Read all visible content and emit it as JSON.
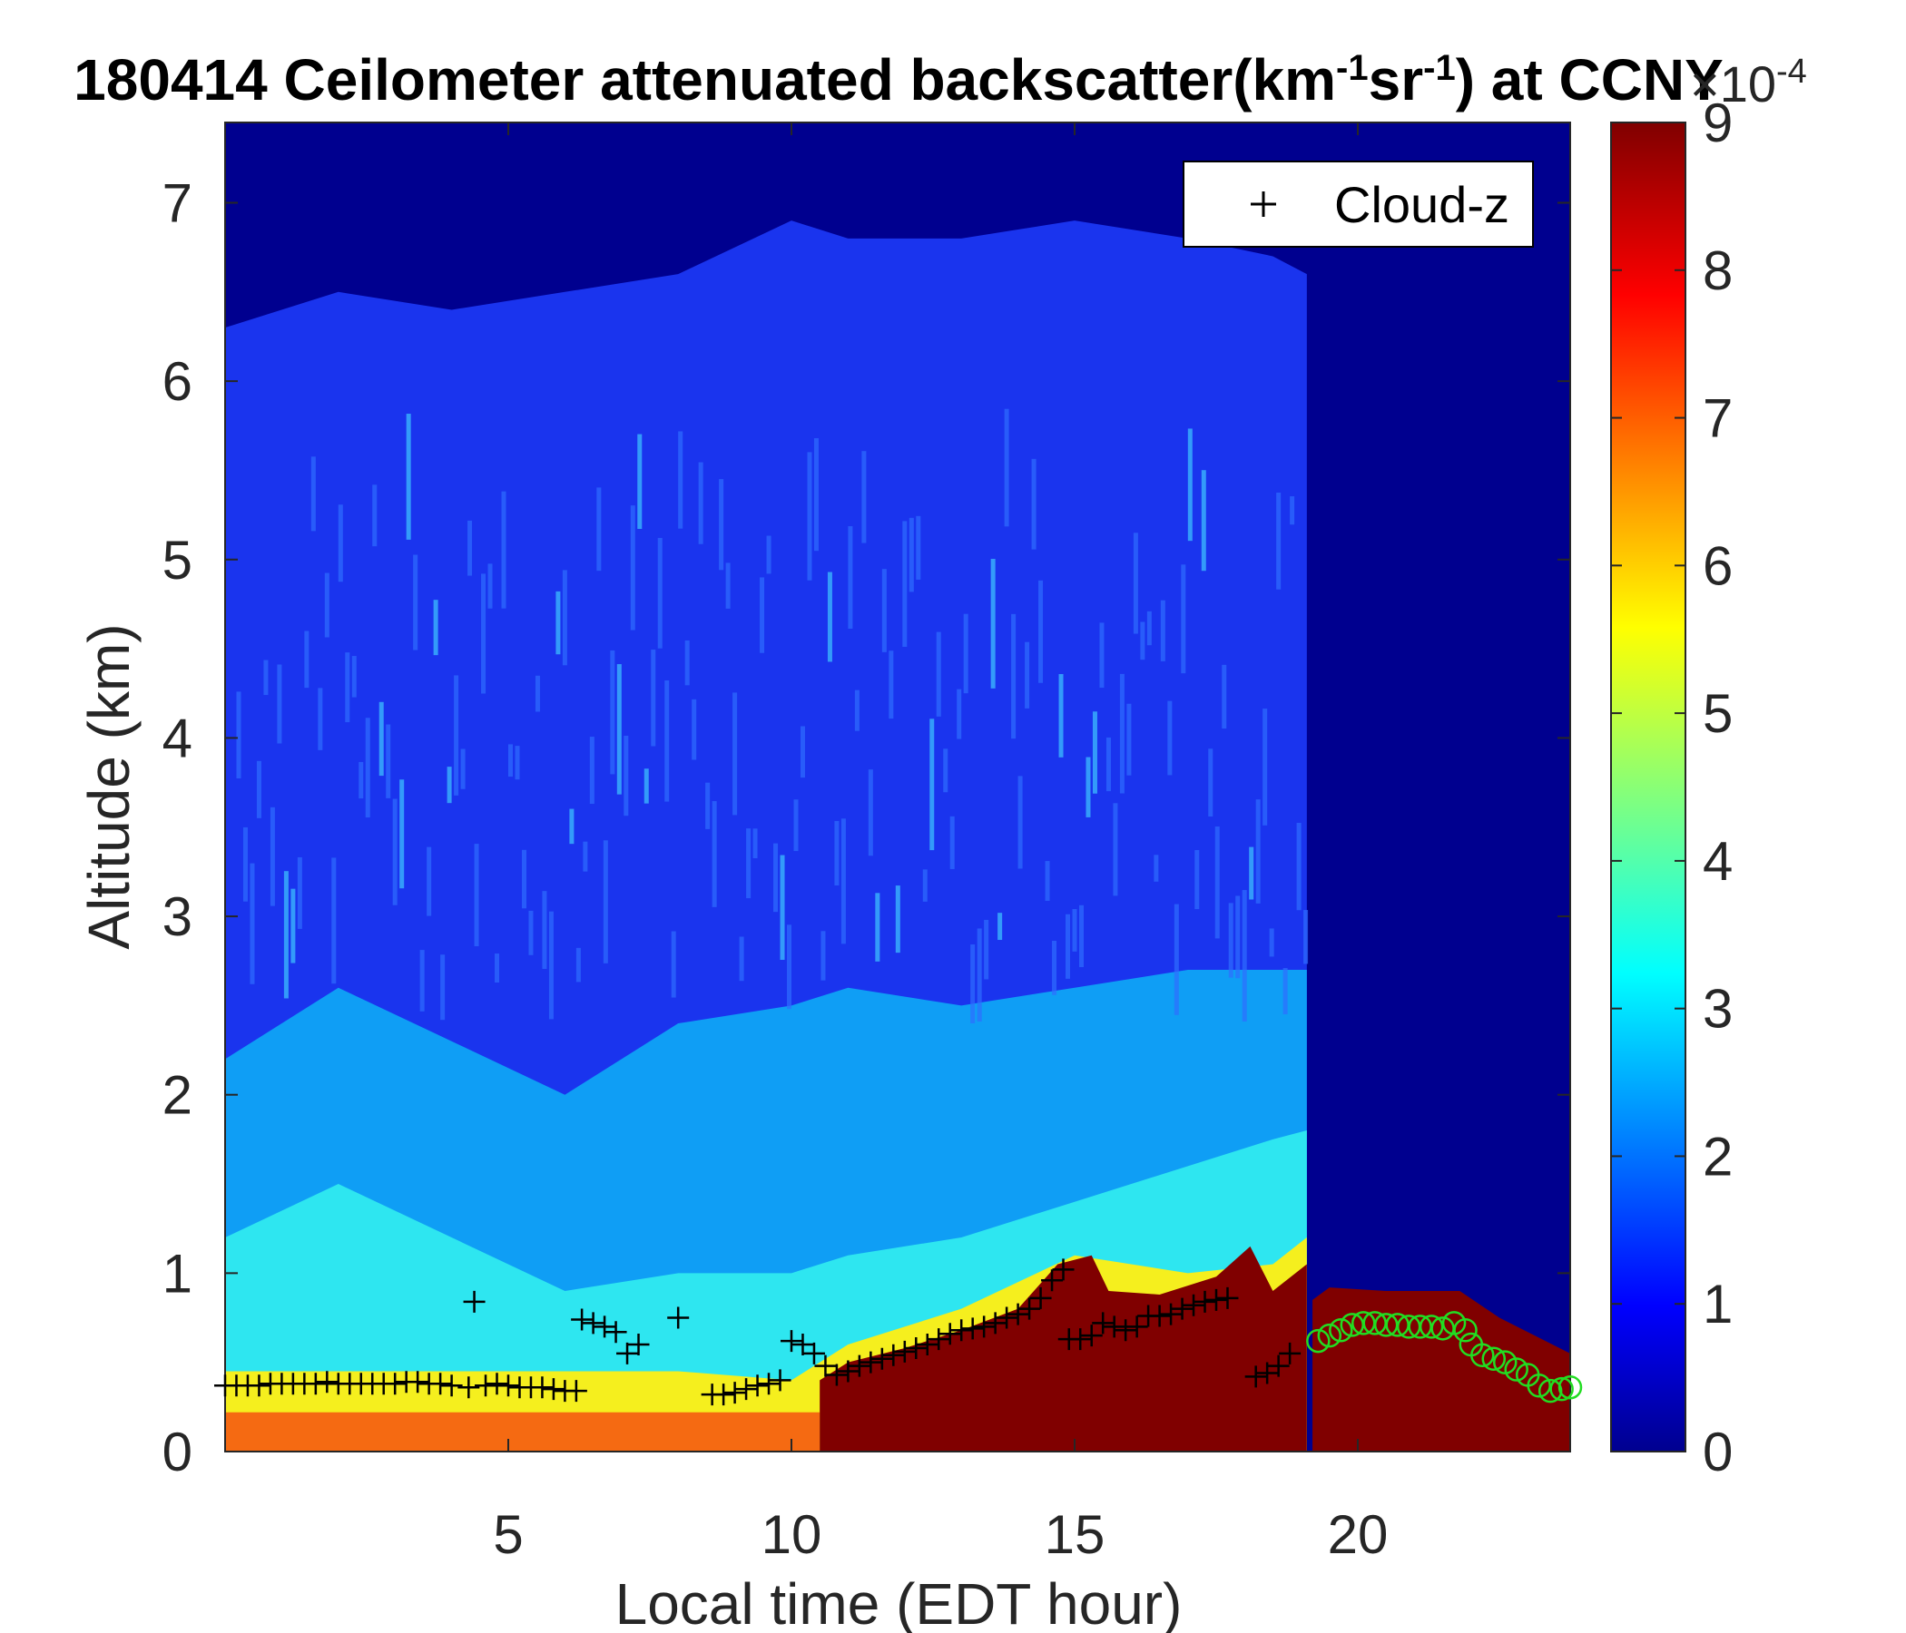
{
  "chart_data": {
    "type": "heatmap",
    "title": {
      "prefix": "180414 Ceilometer attenuated backscatter(km",
      "sup1": "-1",
      "mid": "sr",
      "sup2": "-1",
      "suffix": ") at CCNY"
    },
    "xlabel": "Local time (EDT hour)",
    "ylabel": "Altitude (km)",
    "xlim": [
      0,
      23.75
    ],
    "ylim": [
      0,
      7.45
    ],
    "xticks": [
      5,
      10,
      15,
      20
    ],
    "yticks": [
      0,
      1,
      2,
      3,
      4,
      5,
      6,
      7
    ],
    "colorbar": {
      "colormap": "jet",
      "clim": [
        0,
        9
      ],
      "ticks": [
        0,
        1,
        2,
        3,
        4,
        5,
        6,
        7,
        8,
        9
      ],
      "exponent_base": "×10",
      "exponent_power": "-4"
    },
    "legend": {
      "entries": [
        "Cloud-z"
      ],
      "location": "top-right",
      "marker": "+"
    },
    "backscatter_profile": {
      "description_units": "×10^-4 km^-1 sr^-1",
      "x": [
        0,
        2,
        4,
        6,
        8,
        10,
        11,
        13,
        15,
        17,
        18.5,
        19.1
      ],
      "surface_layer_top_km": [
        0.45,
        0.45,
        0.45,
        0.45,
        0.45,
        0.4,
        0.6,
        0.8,
        1.1,
        1.0,
        1.05,
        1.2
      ],
      "mixed_layer_top_km": [
        1.2,
        1.5,
        1.2,
        0.9,
        1.0,
        1.0,
        1.1,
        1.2,
        1.4,
        1.6,
        1.75,
        1.8
      ],
      "aerosol_top_km": [
        2.2,
        2.6,
        2.3,
        2.0,
        2.4,
        2.5,
        2.6,
        2.5,
        2.6,
        2.7,
        2.7,
        2.7
      ],
      "free_troposphere_top_km": [
        6.3,
        6.5,
        6.4,
        6.5,
        6.6,
        6.9,
        6.8,
        6.8,
        6.9,
        6.8,
        6.7,
        6.6
      ],
      "dark_red_region_x": [
        10.5,
        19.1
      ],
      "dark_red_top_km": [
        [
          10.5,
          0.4
        ],
        [
          11,
          0.5
        ],
        [
          12,
          0.58
        ],
        [
          13,
          0.68
        ],
        [
          14,
          0.8
        ],
        [
          14.7,
          1.05
        ],
        [
          15.3,
          1.1
        ],
        [
          15.6,
          0.9
        ],
        [
          16.5,
          0.88
        ],
        [
          17.5,
          0.98
        ],
        [
          18.1,
          1.15
        ],
        [
          18.5,
          0.9
        ],
        [
          19.1,
          1.05
        ]
      ],
      "night_cloud_top_km": [
        [
          19.2,
          0.85
        ],
        [
          19.5,
          0.92
        ],
        [
          20.5,
          0.9
        ],
        [
          21.8,
          0.9
        ],
        [
          22.5,
          0.75
        ],
        [
          23.75,
          0.55
        ]
      ]
    },
    "cloud_z": {
      "name": "Cloud-z",
      "x": [
        0.0,
        0.2,
        0.4,
        0.6,
        0.8,
        1.0,
        1.2,
        1.4,
        1.6,
        1.8,
        2.0,
        2.2,
        2.4,
        2.6,
        2.8,
        3.0,
        3.2,
        3.4,
        3.6,
        3.8,
        4.0,
        4.3,
        4.6,
        4.8,
        5.0,
        5.2,
        5.4,
        5.6,
        5.8,
        6.0,
        6.2,
        4.4,
        6.3,
        6.5,
        6.7,
        6.9,
        7.1,
        7.3,
        8.0,
        8.6,
        8.8,
        9.0,
        9.2,
        9.4,
        9.6,
        9.8,
        10.0,
        10.2,
        10.4,
        10.6,
        10.8,
        11.0,
        11.2,
        11.4,
        11.6,
        11.8,
        12.0,
        12.2,
        12.4,
        12.6,
        12.8,
        13.0,
        13.2,
        13.4,
        13.6,
        13.8,
        14.0,
        14.2,
        14.4,
        14.6,
        14.8,
        14.9,
        15.1,
        15.3,
        15.5,
        15.7,
        15.9,
        16.1,
        16.3,
        16.5,
        16.7,
        16.9,
        17.1,
        17.3,
        17.5,
        17.7,
        18.2,
        18.4,
        18.6,
        18.8
      ],
      "y": [
        0.37,
        0.37,
        0.37,
        0.37,
        0.38,
        0.38,
        0.38,
        0.38,
        0.38,
        0.39,
        0.38,
        0.38,
        0.38,
        0.38,
        0.38,
        0.38,
        0.39,
        0.39,
        0.38,
        0.38,
        0.37,
        0.36,
        0.37,
        0.38,
        0.37,
        0.36,
        0.36,
        0.36,
        0.35,
        0.34,
        0.34,
        0.84,
        0.74,
        0.72,
        0.7,
        0.67,
        0.55,
        0.6,
        0.75,
        0.32,
        0.32,
        0.33,
        0.35,
        0.37,
        0.38,
        0.4,
        0.62,
        0.6,
        0.55,
        0.48,
        0.43,
        0.45,
        0.48,
        0.5,
        0.52,
        0.54,
        0.56,
        0.58,
        0.6,
        0.63,
        0.66,
        0.68,
        0.69,
        0.7,
        0.72,
        0.75,
        0.77,
        0.8,
        0.86,
        0.96,
        1.02,
        0.63,
        0.63,
        0.65,
        0.72,
        0.7,
        0.68,
        0.7,
        0.76,
        0.76,
        0.77,
        0.8,
        0.82,
        0.84,
        0.85,
        0.86,
        0.42,
        0.44,
        0.48,
        0.55
      ]
    },
    "green_circles": {
      "x": [
        19.3,
        19.5,
        19.7,
        19.9,
        20.1,
        20.3,
        20.5,
        20.7,
        20.9,
        21.1,
        21.3,
        21.5,
        21.7,
        21.9,
        22.0,
        22.2,
        22.4,
        22.6,
        22.8,
        23.0,
        23.2,
        23.4,
        23.6,
        23.75
      ],
      "y": [
        0.62,
        0.65,
        0.68,
        0.71,
        0.72,
        0.72,
        0.71,
        0.71,
        0.7,
        0.7,
        0.7,
        0.69,
        0.72,
        0.68,
        0.6,
        0.54,
        0.52,
        0.5,
        0.46,
        0.43,
        0.37,
        0.34,
        0.35,
        0.36
      ]
    }
  }
}
